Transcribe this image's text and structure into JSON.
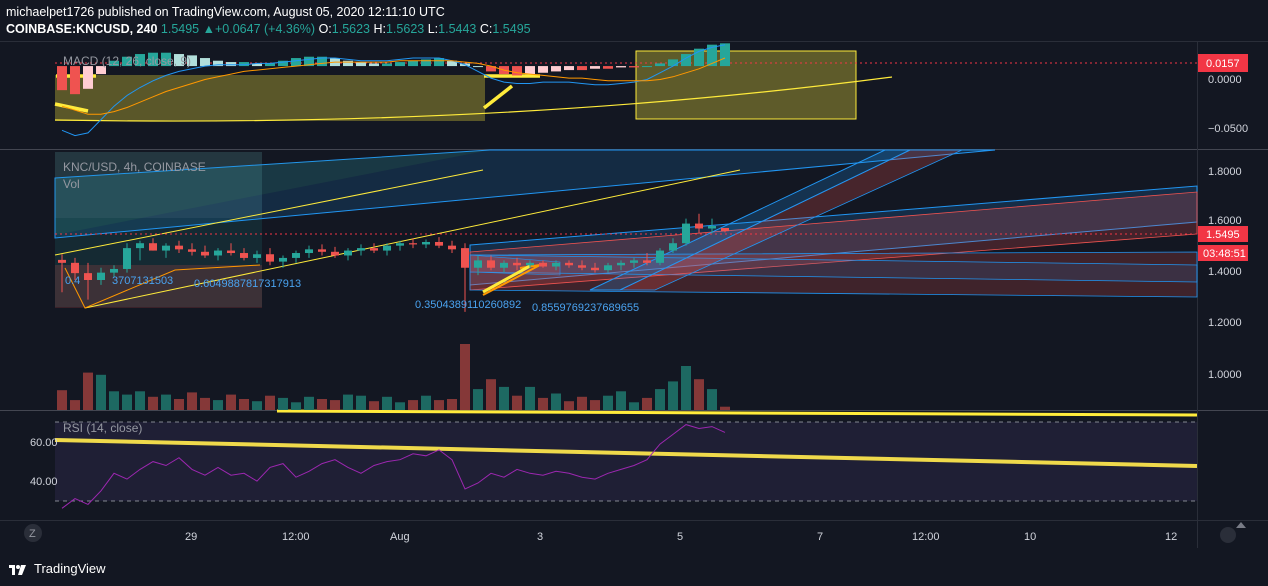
{
  "header": {
    "publisher": "michaelpet1726 published on TradingView.com, August 05, 2020 12:11:10 UTC",
    "symbol": "COINBASE:KNCUSD, 240",
    "price": "1.5495",
    "change_arrow": "▲",
    "change": "+0.0647 (+4.36%)",
    "o_label": "O:",
    "o": "1.5623",
    "h_label": "H:",
    "h": "1.5623",
    "l_label": "L:",
    "l": "1.5443",
    "c_label": "C:",
    "c": "1.5495"
  },
  "panes": {
    "macd_label": "MACD (12, 26, close, 9)",
    "main_label": "KNC/USD, 4h, COINBASE",
    "vol_label": "Vol",
    "rsi_label": "RSI (14, close)"
  },
  "axes": {
    "macd_ticks": [
      "0.0000",
      "−0.0500"
    ],
    "macd_current": "0.0157",
    "price_ticks": [
      "1.8000",
      "1.6000",
      "1.4000",
      "1.2000",
      "1.0000"
    ],
    "price_current": "1.5495",
    "countdown": "03:48:51",
    "rsi_ticks": [
      "60.00",
      "40.00"
    ],
    "time_ticks": [
      "29",
      "12:00",
      "Aug",
      "3",
      "5",
      "7",
      "12:00",
      "10",
      "12"
    ]
  },
  "annotations": {
    "a1": "0.4",
    "a1b": "3707131503",
    "a2": "0.6049887817317913",
    "a3": "0.3504389110260892",
    "a4": "0.8559769237689655"
  },
  "footer": {
    "brand": "TradingView",
    "zoom_button": "Z"
  },
  "colors": {
    "background": "#131722",
    "up": "#26a69a",
    "down": "#ef5350",
    "yellow": "#ffeb3b",
    "rsi": "#9c27b0",
    "macd_line": "#2196f3",
    "signal_line": "#ff9800",
    "price_tag": "#f23645"
  },
  "chart_data": [
    {
      "type": "line",
      "title": "MACD (12, 26, close, 9)",
      "ylim": [
        -0.062,
        0.018
      ],
      "series": [
        {
          "name": "Histogram",
          "kind": "histogram",
          "values": [
            -0.018,
            -0.021,
            -0.017,
            -0.006,
            0.004,
            0.007,
            0.009,
            0.01,
            0.01,
            0.009,
            0.008,
            0.006,
            0.004,
            0.003,
            0.003,
            0.002,
            0.002,
            0.004,
            0.006,
            0.007,
            0.007,
            0.006,
            0.004,
            0.003,
            0.002,
            0.002,
            0.003,
            0.004,
            0.005,
            0.006,
            0.004,
            0.002,
            0.0,
            -0.004,
            -0.006,
            -0.007,
            -0.006,
            -0.005,
            -0.004,
            -0.003,
            -0.003,
            -0.002,
            -0.002,
            -0.001,
            -0.001,
            0.0,
            0.002,
            0.005,
            0.009,
            0.013,
            0.016,
            0.017
          ]
        },
        {
          "name": "MACD",
          "values": [
            -0.048,
            -0.052,
            -0.05,
            -0.04,
            -0.03,
            -0.022,
            -0.016,
            -0.011,
            -0.007,
            -0.004,
            -0.002,
            0.0,
            0.001,
            0.001,
            0.001,
            0.002,
            0.002,
            0.003,
            0.004,
            0.005,
            0.006,
            0.006,
            0.005,
            0.004,
            0.004,
            0.004,
            0.005,
            0.006,
            0.006,
            0.006,
            0.004,
            0.001,
            -0.004,
            -0.009,
            -0.012,
            -0.013,
            -0.013,
            -0.012,
            -0.012,
            -0.012,
            -0.013,
            -0.014,
            -0.014,
            -0.013,
            -0.012,
            -0.01,
            -0.005,
            0.0,
            0.006,
            0.011,
            0.014,
            0.016
          ]
        },
        {
          "name": "Signal",
          "values": [
            -0.03,
            -0.033,
            -0.036,
            -0.036,
            -0.034,
            -0.031,
            -0.027,
            -0.023,
            -0.019,
            -0.016,
            -0.013,
            -0.01,
            -0.008,
            -0.006,
            -0.004,
            -0.003,
            -0.002,
            -0.001,
            0.0,
            0.001,
            0.002,
            0.003,
            0.003,
            0.003,
            0.003,
            0.003,
            0.004,
            0.004,
            0.004,
            0.004,
            0.004,
            0.003,
            0.002,
            0.0,
            -0.003,
            -0.005,
            -0.006,
            -0.007,
            -0.008,
            -0.009,
            -0.009,
            -0.01,
            -0.011,
            -0.011,
            -0.011,
            -0.011,
            -0.01,
            -0.008,
            -0.005,
            -0.002,
            0.002,
            0.006
          ]
        }
      ]
    },
    {
      "type": "bar",
      "title": "KNC/USD, 4h, COINBASE",
      "ylim": [
        0.82,
        1.88
      ],
      "candles": [
        {
          "o": 1.432,
          "h": 1.455,
          "l": 1.3,
          "c": 1.42
        },
        {
          "o": 1.42,
          "h": 1.44,
          "l": 1.35,
          "c": 1.378
        },
        {
          "o": 1.378,
          "h": 1.42,
          "l": 1.27,
          "c": 1.35
        },
        {
          "o": 1.35,
          "h": 1.4,
          "l": 1.33,
          "c": 1.38
        },
        {
          "o": 1.38,
          "h": 1.41,
          "l": 1.36,
          "c": 1.395
        },
        {
          "o": 1.395,
          "h": 1.5,
          "l": 1.38,
          "c": 1.48
        },
        {
          "o": 1.48,
          "h": 1.51,
          "l": 1.43,
          "c": 1.5
        },
        {
          "o": 1.5,
          "h": 1.52,
          "l": 1.47,
          "c": 1.47
        },
        {
          "o": 1.47,
          "h": 1.5,
          "l": 1.44,
          "c": 1.49
        },
        {
          "o": 1.49,
          "h": 1.51,
          "l": 1.46,
          "c": 1.475
        },
        {
          "o": 1.475,
          "h": 1.5,
          "l": 1.45,
          "c": 1.465
        },
        {
          "o": 1.465,
          "h": 1.49,
          "l": 1.44,
          "c": 1.45
        },
        {
          "o": 1.45,
          "h": 1.48,
          "l": 1.43,
          "c": 1.47
        },
        {
          "o": 1.47,
          "h": 1.5,
          "l": 1.45,
          "c": 1.46
        },
        {
          "o": 1.46,
          "h": 1.48,
          "l": 1.43,
          "c": 1.44
        },
        {
          "o": 1.44,
          "h": 1.47,
          "l": 1.42,
          "c": 1.455
        },
        {
          "o": 1.455,
          "h": 1.48,
          "l": 1.41,
          "c": 1.425
        },
        {
          "o": 1.425,
          "h": 1.45,
          "l": 1.4,
          "c": 1.44
        },
        {
          "o": 1.44,
          "h": 1.47,
          "l": 1.42,
          "c": 1.46
        },
        {
          "o": 1.46,
          "h": 1.49,
          "l": 1.44,
          "c": 1.475
        },
        {
          "o": 1.475,
          "h": 1.495,
          "l": 1.45,
          "c": 1.465
        },
        {
          "o": 1.465,
          "h": 1.485,
          "l": 1.44,
          "c": 1.45
        },
        {
          "o": 1.45,
          "h": 1.48,
          "l": 1.43,
          "c": 1.47
        },
        {
          "o": 1.47,
          "h": 1.495,
          "l": 1.45,
          "c": 1.48
        },
        {
          "o": 1.48,
          "h": 1.5,
          "l": 1.46,
          "c": 1.47
        },
        {
          "o": 1.47,
          "h": 1.5,
          "l": 1.45,
          "c": 1.49
        },
        {
          "o": 1.49,
          "h": 1.51,
          "l": 1.47,
          "c": 1.5
        },
        {
          "o": 1.5,
          "h": 1.52,
          "l": 1.48,
          "c": 1.495
        },
        {
          "o": 1.495,
          "h": 1.515,
          "l": 1.48,
          "c": 1.505
        },
        {
          "o": 1.505,
          "h": 1.525,
          "l": 1.48,
          "c": 1.49
        },
        {
          "o": 1.49,
          "h": 1.51,
          "l": 1.46,
          "c": 1.475
        },
        {
          "o": 1.48,
          "h": 1.5,
          "l": 1.22,
          "c": 1.4
        },
        {
          "o": 1.4,
          "h": 1.45,
          "l": 1.37,
          "c": 1.43
        },
        {
          "o": 1.43,
          "h": 1.45,
          "l": 1.39,
          "c": 1.4
        },
        {
          "o": 1.4,
          "h": 1.43,
          "l": 1.38,
          "c": 1.42
        },
        {
          "o": 1.42,
          "h": 1.44,
          "l": 1.39,
          "c": 1.41
        },
        {
          "o": 1.41,
          "h": 1.43,
          "l": 1.4,
          "c": 1.42
        },
        {
          "o": 1.42,
          "h": 1.43,
          "l": 1.4,
          "c": 1.405
        },
        {
          "o": 1.405,
          "h": 1.43,
          "l": 1.39,
          "c": 1.42
        },
        {
          "o": 1.42,
          "h": 1.43,
          "l": 1.4,
          "c": 1.41
        },
        {
          "o": 1.41,
          "h": 1.43,
          "l": 1.39,
          "c": 1.4
        },
        {
          "o": 1.4,
          "h": 1.42,
          "l": 1.38,
          "c": 1.39
        },
        {
          "o": 1.39,
          "h": 1.42,
          "l": 1.38,
          "c": 1.41
        },
        {
          "o": 1.41,
          "h": 1.43,
          "l": 1.39,
          "c": 1.42
        },
        {
          "o": 1.42,
          "h": 1.44,
          "l": 1.4,
          "c": 1.43
        },
        {
          "o": 1.43,
          "h": 1.46,
          "l": 1.41,
          "c": 1.42
        },
        {
          "o": 1.42,
          "h": 1.48,
          "l": 1.41,
          "c": 1.47
        },
        {
          "o": 1.47,
          "h": 1.52,
          "l": 1.46,
          "c": 1.5
        },
        {
          "o": 1.5,
          "h": 1.6,
          "l": 1.49,
          "c": 1.58
        },
        {
          "o": 1.58,
          "h": 1.62,
          "l": 1.54,
          "c": 1.56
        },
        {
          "o": 1.56,
          "h": 1.6,
          "l": 1.54,
          "c": 1.57
        },
        {
          "o": 1.562,
          "h": 1.562,
          "l": 1.544,
          "c": 1.5495
        }
      ],
      "volumes": [
        18,
        9,
        34,
        32,
        17,
        14,
        17,
        12,
        14,
        10,
        16,
        11,
        9,
        14,
        10,
        8,
        13,
        11,
        7,
        12,
        10,
        9,
        14,
        13,
        8,
        12,
        7,
        9,
        13,
        9,
        10,
        60,
        19,
        28,
        21,
        13,
        21,
        11,
        15,
        8,
        12,
        9,
        13,
        17,
        7,
        11,
        19,
        26,
        40,
        28,
        19,
        3
      ]
    },
    {
      "type": "line",
      "title": "RSI (14, close)",
      "ylim": [
        22,
        78
      ],
      "series": [
        {
          "name": "RSI",
          "values": [
            28,
            33,
            30,
            37,
            46,
            43,
            48,
            52,
            50,
            54,
            48,
            45,
            49,
            45,
            46,
            42,
            49,
            51,
            44,
            47,
            51,
            53,
            49,
            46,
            50,
            52,
            53,
            56,
            55,
            58,
            53,
            38,
            41,
            46,
            44,
            48,
            46,
            45,
            47,
            46,
            44,
            43,
            46,
            48,
            50,
            53,
            61,
            66,
            71,
            69,
            70,
            67
          ]
        }
      ]
    }
  ]
}
